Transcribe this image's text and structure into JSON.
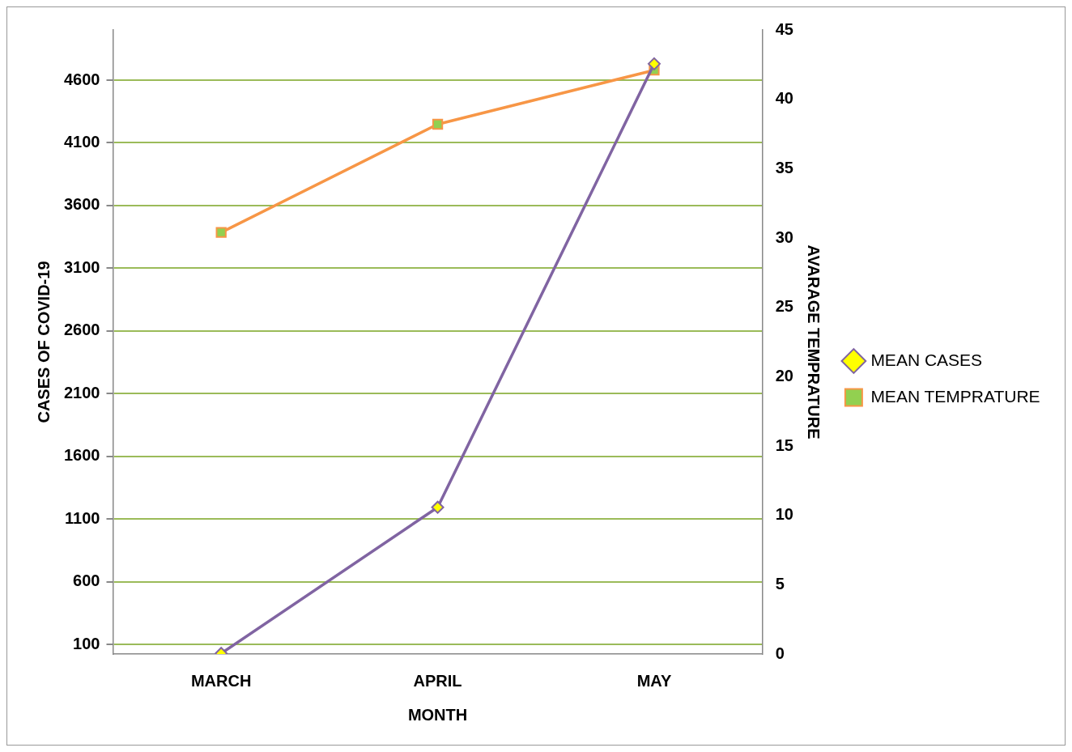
{
  "chart_data": {
    "type": "line",
    "xlabel": "MONTH",
    "ylabel": "CASES OF COVID-19",
    "y2label": "AVARAGE TEMPRATURE",
    "categories": [
      "MARCH",
      "APRIL",
      "MAY"
    ],
    "series": [
      {
        "name": "MEAN CASES",
        "color": "#8064a2",
        "values": [
          30,
          1195,
          4730
        ],
        "marker": "diamond"
      },
      {
        "name": "MEAN TEMPRATURE",
        "color": "#f79646",
        "values": [
          30.4,
          38.2,
          42.1
        ],
        "axis": "y2",
        "marker": "square"
      }
    ],
    "ylim": [
      25,
      5000
    ],
    "yticks": [
      100,
      600,
      1100,
      1600,
      2100,
      2600,
      3100,
      3600,
      4100,
      4600
    ],
    "y2lim": [
      0,
      45
    ],
    "y2ticks": [
      0,
      5,
      10,
      15,
      20,
      25,
      30,
      35,
      40,
      45
    ],
    "grid": "y",
    "legend": "right",
    "line_style": "solid"
  }
}
